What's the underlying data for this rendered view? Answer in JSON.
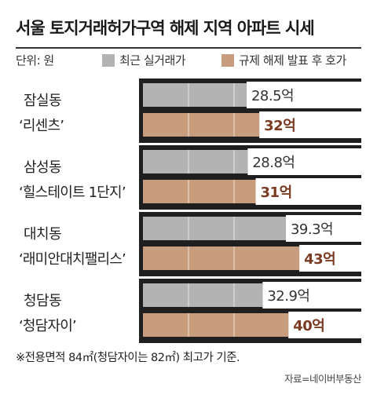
{
  "title": "서울 토지거래허가구역 해제 지역 아파트 시세",
  "unit_label": "단위: 원",
  "footnote": "※전용면적 84㎡(청담자이는 82㎡) 최고가 기준.",
  "source": "자료=네이버부동산",
  "colors": {
    "recent": "#b3b3b3",
    "asking": "#c89d7e",
    "asking_label": "#7b3a22",
    "background_band": "#1f1f1f"
  },
  "chart_data": {
    "type": "bar",
    "orientation": "horizontal",
    "title": "서울 토지거래허가구역 해제 지역 아파트 시세",
    "unit": "억",
    "categories": [
      {
        "district": "잠실동",
        "complex": "‘리센츠’"
      },
      {
        "district": "삼성동",
        "complex": "‘힐스테이트 1단지’"
      },
      {
        "district": "대치동",
        "complex": "‘래미안대치팰리스’"
      },
      {
        "district": "청담동",
        "complex": "‘청담자이’"
      }
    ],
    "series": [
      {
        "name": "최근 실거래가",
        "values": [
          28.5,
          28.8,
          39.3,
          32.9
        ],
        "labels": [
          "28.5억",
          "28.8억",
          "39.3억",
          "32.9억"
        ]
      },
      {
        "name": "규제 해제 발표 후 호가",
        "values": [
          32,
          31,
          43,
          40
        ],
        "labels": [
          "32억",
          "31억",
          "43억",
          "40억"
        ]
      }
    ],
    "xlim": [
      0,
      50
    ],
    "grid": true,
    "legend_position": "top"
  }
}
